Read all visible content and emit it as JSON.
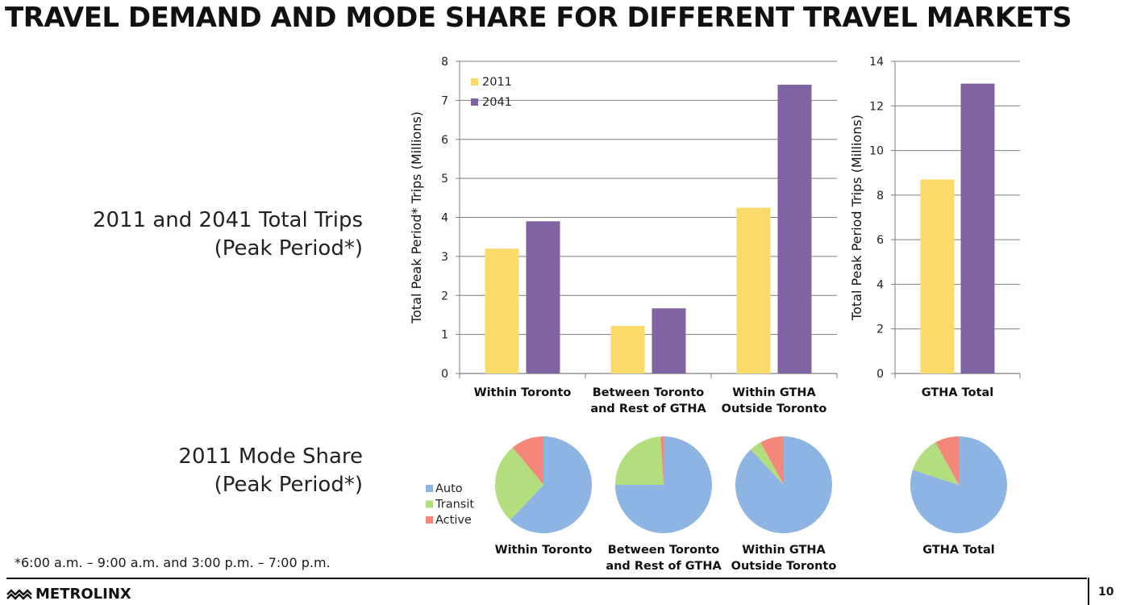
{
  "title": "TRAVEL DEMAND  AND MODE SHARE FOR DIFFERENT TRAVEL MARKETS",
  "sections": {
    "trips": {
      "line1": "2011 and 2041 Total Trips",
      "line2": "(Peak Period*)"
    },
    "mode": {
      "line1": "2011 Mode Share",
      "line2": "(Peak Period*)"
    }
  },
  "footnote": "*6:00 a.m. – 9:00 a.m. and 3:00 p.m. – 7:00 p.m.",
  "logo_text": "METROLINX",
  "page_number": "10",
  "colors": {
    "y2011": "#F9DA6A",
    "y2041": "#8064A2",
    "auto": "#8DB4E2",
    "transit": "#B3DE7E",
    "active": "#F4877A",
    "grid": "#7f7f7f"
  },
  "chart_data": [
    {
      "type": "bar",
      "ylabel": "Total Peak Period* Trips (Millions)",
      "ylim": [
        0,
        8
      ],
      "yticks": [
        "0",
        "1",
        "2",
        "3",
        "4",
        "5",
        "6",
        "7",
        "8"
      ],
      "categories": [
        [
          "Within Toronto"
        ],
        [
          "Between Toronto",
          "and Rest of GTHA"
        ],
        [
          "Within GTHA",
          "Outside Toronto"
        ]
      ],
      "series": [
        {
          "name": "2011",
          "values": [
            3.2,
            1.22,
            4.25
          ]
        },
        {
          "name": "2041",
          "values": [
            3.9,
            1.67,
            7.4
          ]
        }
      ],
      "legend": [
        "2011",
        "2041"
      ],
      "legend_position": "top-left"
    },
    {
      "type": "bar",
      "ylabel": "Total Peak Period Trips (Millions)",
      "ylim": [
        0,
        14
      ],
      "yticks": [
        "0",
        "2",
        "4",
        "6",
        "8",
        "10",
        "12",
        "14"
      ],
      "categories": [
        [
          "GTHA Total"
        ]
      ],
      "series": [
        {
          "name": "2011",
          "values": [
            8.7
          ]
        },
        {
          "name": "2041",
          "values": [
            13.0
          ]
        }
      ]
    },
    {
      "type": "pie",
      "legend": [
        "Auto",
        "Transit",
        "Active"
      ],
      "pies": [
        {
          "label": [
            "Within Toronto"
          ],
          "values": [
            62,
            27,
            11
          ]
        },
        {
          "label": [
            "Between Toronto",
            "and Rest of GTHA"
          ],
          "values": [
            75,
            24,
            1
          ]
        },
        {
          "label": [
            "Within GTHA",
            "Outside Toronto"
          ],
          "values": [
            88,
            4,
            8
          ]
        },
        {
          "label": [
            "GTHA Total"
          ],
          "values": [
            80,
            12,
            8
          ]
        }
      ]
    }
  ]
}
